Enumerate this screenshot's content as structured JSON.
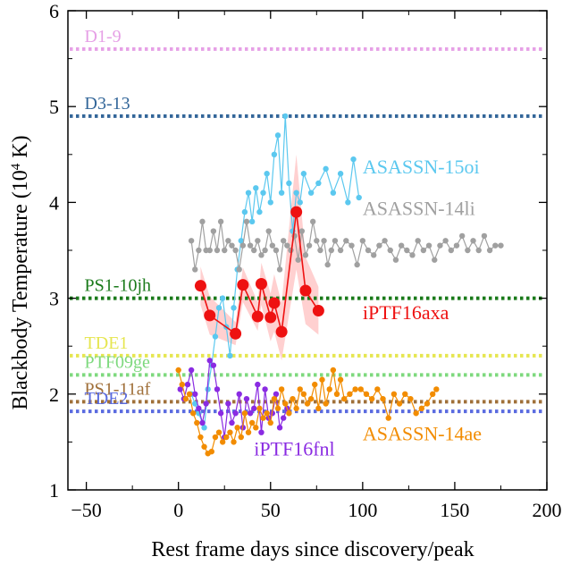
{
  "chart_data": {
    "type": "line",
    "xlabel": "Rest frame days since discovery/peak",
    "ylabel_main": "Blackbody Temperature (10",
    "ylabel_sup": "4",
    "ylabel_unit": " K)",
    "xlim": [
      -60,
      200
    ],
    "ylim": [
      1,
      6
    ],
    "xticks": [
      -50,
      0,
      50,
      100,
      150,
      200
    ],
    "yticks": [
      1,
      2,
      3,
      4,
      5,
      6
    ],
    "grid": false,
    "reference_lines": [
      {
        "name": "D1-9",
        "y": 5.6,
        "color": "#e6a0e6"
      },
      {
        "name": "D3-13",
        "y": 4.9,
        "color": "#336699"
      },
      {
        "name": "PS1-10jh",
        "y": 3.0,
        "color": "#1a7a1a"
      },
      {
        "name": "TDE1",
        "y": 2.4,
        "color": "#e6e650"
      },
      {
        "name": "PTF09ge",
        "y": 2.2,
        "color": "#7ed97e"
      },
      {
        "name": "PS1-11af",
        "y": 1.92,
        "color": "#a0703a"
      },
      {
        "name": "TDE2",
        "y": 1.82,
        "color": "#5a6be0"
      }
    ],
    "series": [
      {
        "name": "ASASSN-15oi",
        "color": "#5bc8ef",
        "x": [
          7,
          9,
          11,
          14,
          16,
          18,
          20,
          22,
          24,
          26,
          28,
          30,
          32,
          34,
          36,
          38,
          40,
          42,
          44,
          46,
          48,
          50,
          52,
          54,
          56,
          58,
          60,
          62,
          64,
          66,
          68,
          72,
          76,
          80,
          84,
          88,
          92,
          95,
          98
        ],
        "y": [
          2.0,
          1.9,
          1.8,
          1.65,
          2.05,
          2.3,
          2.6,
          2.9,
          3.0,
          2.7,
          2.4,
          2.9,
          3.3,
          3.6,
          3.9,
          4.1,
          3.8,
          4.15,
          3.9,
          4.1,
          4.3,
          4.0,
          4.5,
          4.7,
          4.1,
          4.9,
          4.2,
          3.7,
          4.1,
          4.0,
          4.3,
          4.1,
          4.2,
          4.35,
          4.1,
          4.3,
          4.0,
          4.45,
          4.05
        ]
      },
      {
        "name": "ASASSN-14li",
        "color": "#a0a0a0",
        "x": [
          7,
          9,
          11,
          13,
          15,
          17,
          19,
          21,
          23,
          25,
          27,
          29,
          31,
          33,
          35,
          37,
          39,
          41,
          43,
          45,
          47,
          49,
          51,
          53,
          55,
          57,
          59,
          61,
          63,
          65,
          67,
          69,
          71,
          73,
          75,
          77,
          79,
          81,
          83,
          85,
          88,
          91,
          94,
          97,
          100,
          103,
          106,
          109,
          112,
          115,
          118,
          121,
          124,
          127,
          130,
          133,
          136,
          139,
          142,
          145,
          148,
          151,
          154,
          157,
          160,
          163,
          166,
          169,
          172,
          175
        ],
        "y": [
          3.6,
          3.3,
          3.5,
          3.8,
          3.5,
          3.5,
          3.7,
          3.5,
          3.8,
          3.5,
          3.6,
          3.55,
          3.5,
          3.3,
          3.55,
          3.8,
          3.55,
          3.5,
          3.6,
          3.45,
          3.5,
          3.7,
          3.55,
          3.5,
          3.3,
          3.6,
          3.55,
          3.5,
          3.65,
          3.4,
          3.7,
          3.45,
          3.55,
          3.8,
          3.6,
          3.5,
          3.6,
          3.35,
          3.5,
          3.6,
          3.5,
          3.6,
          3.55,
          3.35,
          3.6,
          3.5,
          3.45,
          3.55,
          3.6,
          3.5,
          3.4,
          3.55,
          3.5,
          3.45,
          3.6,
          3.5,
          3.55,
          3.4,
          3.55,
          3.6,
          3.5,
          3.55,
          3.65,
          3.5,
          3.6,
          3.5,
          3.65,
          3.5,
          3.55,
          3.55
        ]
      },
      {
        "name": "iPTF16axa",
        "color": "#ee1111",
        "band_color": "#ffb7b7",
        "x": [
          12,
          17,
          31,
          35,
          43,
          45,
          50,
          52,
          56,
          64,
          69,
          76
        ],
        "y": [
          3.13,
          2.82,
          2.63,
          3.14,
          2.81,
          3.15,
          2.8,
          2.95,
          2.65,
          3.9,
          3.08,
          2.87
        ],
        "err": [
          0.2,
          0.2,
          0.12,
          0.18,
          0.15,
          0.22,
          0.25,
          0.3,
          0.3,
          0.6,
          0.35,
          0.25
        ]
      },
      {
        "name": "iPTF16fnl",
        "color": "#8a2be2",
        "x": [
          1,
          3,
          5,
          7,
          9,
          11,
          13,
          15,
          17,
          19,
          21,
          23,
          25,
          27,
          29,
          31,
          33,
          35,
          37,
          39,
          41,
          43,
          45,
          47,
          49,
          51,
          53,
          55,
          57,
          59
        ],
        "y": [
          2.05,
          1.95,
          2.1,
          2.25,
          2.0,
          1.85,
          1.7,
          1.9,
          2.35,
          2.3,
          2.05,
          1.8,
          1.55,
          1.9,
          1.7,
          1.8,
          2.0,
          1.65,
          1.95,
          1.8,
          1.85,
          2.1,
          1.6,
          2.05,
          1.75,
          1.8,
          2.0,
          1.65,
          1.75,
          1.85
        ]
      },
      {
        "name": "ASASSN-14ae",
        "color": "#f28c00",
        "x": [
          0,
          2,
          4,
          6,
          8,
          10,
          12,
          14,
          16,
          18,
          20,
          22,
          24,
          26,
          28,
          30,
          32,
          34,
          36,
          38,
          40,
          42,
          44,
          46,
          48,
          50,
          52,
          54,
          56,
          58,
          60,
          62,
          64,
          66,
          68,
          70,
          72,
          74,
          76,
          78,
          80,
          82,
          84,
          86,
          88,
          90,
          93,
          96,
          99,
          102,
          105,
          108,
          111,
          114,
          117,
          120,
          123,
          126,
          129,
          132,
          135,
          138,
          140
        ],
        "y": [
          2.25,
          2.1,
          1.95,
          2.0,
          1.8,
          1.7,
          1.55,
          1.45,
          1.38,
          1.4,
          1.55,
          1.6,
          1.5,
          1.55,
          1.6,
          1.5,
          1.65,
          1.55,
          1.8,
          1.6,
          1.7,
          1.65,
          1.85,
          1.75,
          1.8,
          1.7,
          1.95,
          1.85,
          2.05,
          1.9,
          1.8,
          1.95,
          1.85,
          2.05,
          2.0,
          1.9,
          1.95,
          2.1,
          1.85,
          2.15,
          1.9,
          2.05,
          2.25,
          2.0,
          2.15,
          1.95,
          2.0,
          2.05,
          2.05,
          2.0,
          1.95,
          2.05,
          1.95,
          1.75,
          2.0,
          1.9,
          2.0,
          1.95,
          1.8,
          1.85,
          1.9,
          2.0,
          2.05
        ]
      }
    ],
    "series_labels": [
      {
        "name": "ASASSN-15oi",
        "anchor_x": 100,
        "anchor_y": 4.3
      },
      {
        "name": "ASASSN-14li",
        "anchor_x": 100,
        "anchor_y": 3.87
      },
      {
        "name": "iPTF16axa",
        "anchor_x": 100,
        "anchor_y": 2.78
      },
      {
        "name": "iPTF16fnl",
        "anchor_x": 41,
        "anchor_y": 1.36
      },
      {
        "name": "ASASSN-14ae",
        "anchor_x": 100,
        "anchor_y": 1.52
      }
    ],
    "reference_label_x": -51
  }
}
